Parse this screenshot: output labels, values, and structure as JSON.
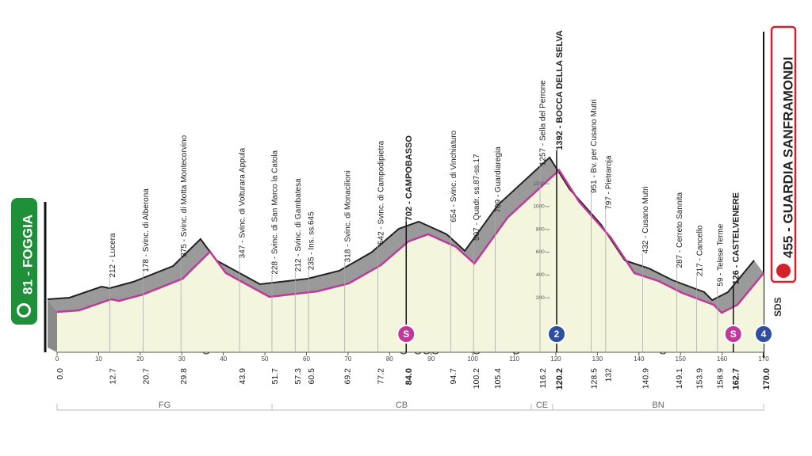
{
  "chart_data": {
    "type": "elevation-profile",
    "start": "81 - FOGGIA",
    "finish": "455 - GUARDIA SANFRAMONDI",
    "logo": "SDS",
    "xlim": [
      0,
      170
    ],
    "ylim": [
      0,
      1450
    ],
    "xticks": [
      0,
      10,
      20,
      30,
      40,
      50,
      60,
      70,
      80,
      90,
      100,
      110,
      120,
      130,
      140,
      150,
      160,
      170
    ],
    "yticks": [
      200,
      400,
      600,
      800,
      1000,
      1200
    ],
    "x": [
      0,
      5.3,
      13,
      14.9,
      20.6,
      30.2,
      36.8,
      40.6,
      51.1,
      62.6,
      70.2,
      77.9,
      84.5,
      89.3,
      96,
      100.4,
      108.4,
      120.8,
      125.6,
      133.2,
      138.9,
      144.7,
      150.4,
      158,
      159.9,
      163.7,
      170
    ],
    "values": [
      76,
      90,
      187,
      173,
      229,
      368,
      604,
      417,
      208,
      257,
      326,
      486,
      694,
      757,
      646,
      500,
      903,
      1319,
      1042,
      729,
      417,
      347,
      243,
      139,
      69,
      139,
      417
    ],
    "color": "#c0399a",
    "start_km": {
      "value": 0,
      "label": "0.0"
    },
    "finish_km": {
      "value": 170,
      "label": "170.0"
    },
    "waypoints": [
      {
        "label": "212 - Lucera",
        "km": 12.7
      },
      {
        "label": "178 - Svinc. di Alberona",
        "km": 20.7
      },
      {
        "label": "375 - Svinc. di Motta Montecorvino",
        "km": 29.8
      },
      {
        "label": "347 - Svinc. di Volturara Appula",
        "km": 43.9
      },
      {
        "label": "228 - Svinc. di San Marco la Catola",
        "km": 51.7
      },
      {
        "label": "212 - Svinc. di Gambatesa",
        "km": 57.3
      },
      {
        "label": "235 - Ins. ss.645",
        "km": 60.5
      },
      {
        "label": "318 - Svinc. di Monacilioni",
        "km": 69.2
      },
      {
        "label": "542 - Svinc. di Campodipietra",
        "km": 77.2
      },
      {
        "label": "702 - CAMPOBASSO",
        "km": {
          "value": 84,
          "label": "84.0"
        },
        "bold": true
      },
      {
        "label": "654 - Svinc. di Vinchiaturo",
        "km": 94.7
      },
      {
        "label": "507 - Quadr. ss.87-ss.17",
        "km": 100.2
      },
      {
        "label": "709 - Guardiaregia",
        "km": 105.4
      },
      {
        "label": "1257 - Sella del Perrone",
        "km": 116.2
      },
      {
        "label": "1392 - BOCCA DELLA SELVA",
        "km": 120.2,
        "bold": true
      },
      {
        "label": "951 - Bv. per Cusano Mutri",
        "km": 128.5
      },
      {
        "label": "797 - Pietraroja",
        "km": 132
      },
      {
        "label": "432 - Cusano Mutri",
        "km": 140.9
      },
      {
        "label": "287 - Cerreto Sannita",
        "km": 149.1
      },
      {
        "label": "217 - Cancello",
        "km": 153.9
      },
      {
        "label": "59 - Telese Terme",
        "km": 158.9
      },
      {
        "label": "126 - CASTELVENERE",
        "km": 162.7,
        "bold": true
      }
    ],
    "markers": [
      {
        "symbol": "S",
        "km": 84,
        "kind": "sprint",
        "color": "#c0399a"
      },
      {
        "symbol": "2",
        "km": 120.2,
        "kind": "climb",
        "color": "#2d4f9e"
      },
      {
        "symbol": "S",
        "km": 162.7,
        "kind": "sprint",
        "color": "#c0399a"
      },
      {
        "symbol": "4",
        "km": 170,
        "kind": "climb",
        "color": "#2d4f9e"
      }
    ],
    "zones": [
      "FG",
      "CB",
      "CE",
      "BN"
    ]
  }
}
